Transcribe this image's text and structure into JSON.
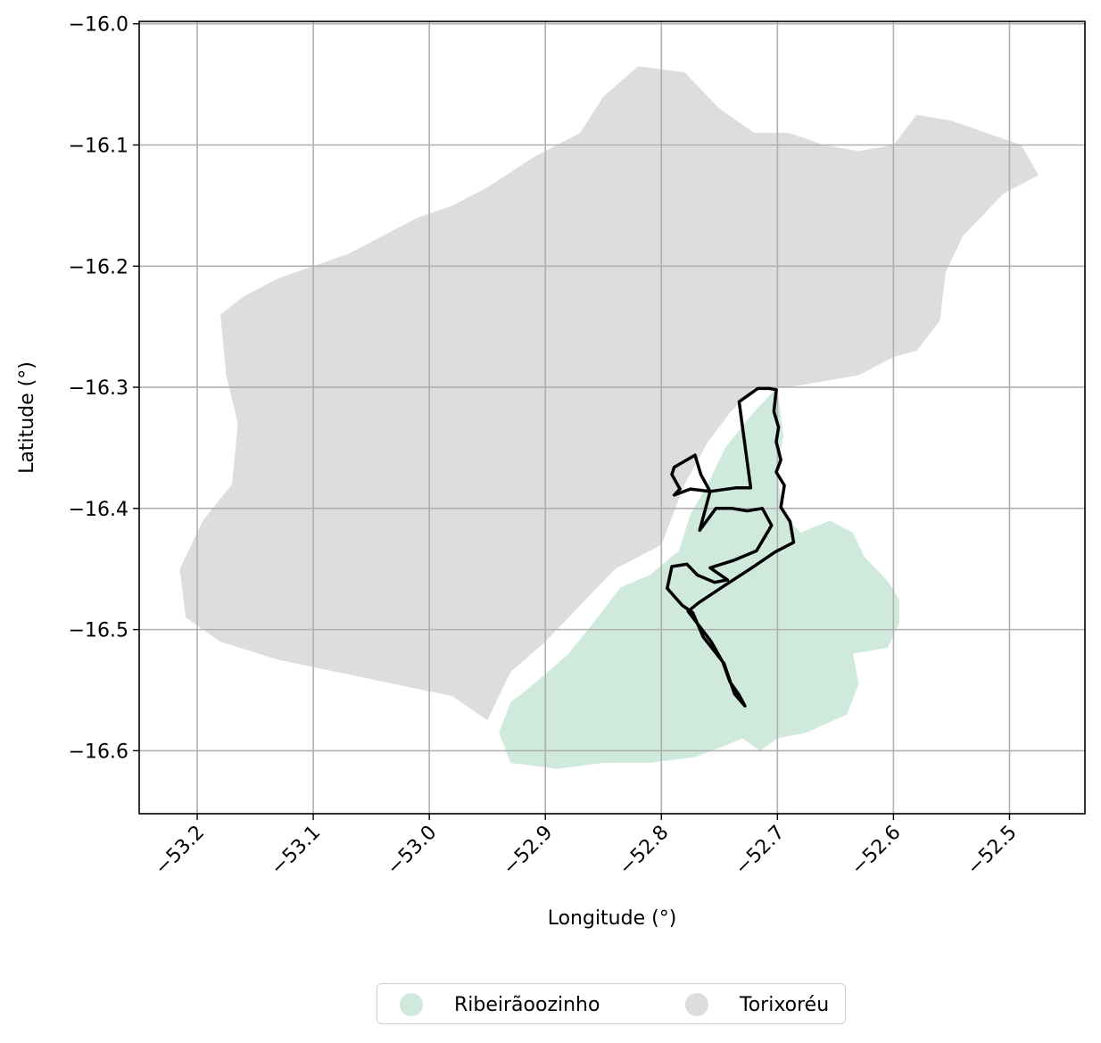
{
  "chart_data": {
    "type": "map",
    "xlabel": "Longitude (°)",
    "ylabel": "Latitude (°)",
    "xlim": [
      -53.25,
      -52.435
    ],
    "ylim": [
      -16.652,
      -15.998
    ],
    "xticks": [
      -53.2,
      -53.1,
      -53.0,
      -52.9,
      -52.8,
      -52.7,
      -52.6,
      -52.5
    ],
    "xtick_labels": [
      "−53.2",
      "−53.1",
      "−53.0",
      "−52.9",
      "−52.8",
      "−52.7",
      "−52.6",
      "−52.5"
    ],
    "yticks": [
      -16.0,
      -16.1,
      -16.2,
      -16.3,
      -16.4,
      -16.5,
      -16.6
    ],
    "ytick_labels": [
      "−16.0",
      "−16.1",
      "−16.2",
      "−16.3",
      "−16.4",
      "−16.5",
      "−16.6"
    ],
    "grid": true,
    "legend_position": "bottom-center",
    "regions": [
      {
        "name": "Torixoréu",
        "color": "#dddddd",
        "polygon": [
          [
            -52.91,
            -16.11
          ],
          [
            -52.87,
            -16.09
          ],
          [
            -52.85,
            -16.06
          ],
          [
            -52.82,
            -16.035
          ],
          [
            -52.78,
            -16.04
          ],
          [
            -52.75,
            -16.07
          ],
          [
            -52.72,
            -16.09
          ],
          [
            -52.69,
            -16.09
          ],
          [
            -52.66,
            -16.1
          ],
          [
            -52.63,
            -16.105
          ],
          [
            -52.6,
            -16.1
          ],
          [
            -52.58,
            -16.075
          ],
          [
            -52.55,
            -16.08
          ],
          [
            -52.52,
            -16.09
          ],
          [
            -52.49,
            -16.1
          ],
          [
            -52.475,
            -16.125
          ],
          [
            -52.505,
            -16.14
          ],
          [
            -52.54,
            -16.175
          ],
          [
            -52.555,
            -16.205
          ],
          [
            -52.56,
            -16.245
          ],
          [
            -52.58,
            -16.27
          ],
          [
            -52.6,
            -16.275
          ],
          [
            -52.63,
            -16.29
          ],
          [
            -52.66,
            -16.295
          ],
          [
            -52.69,
            -16.3
          ],
          [
            -52.72,
            -16.3
          ],
          [
            -52.74,
            -16.32
          ],
          [
            -52.76,
            -16.345
          ],
          [
            -52.78,
            -16.38
          ],
          [
            -52.8,
            -16.43
          ],
          [
            -52.84,
            -16.45
          ],
          [
            -52.87,
            -16.48
          ],
          [
            -52.9,
            -16.51
          ],
          [
            -52.93,
            -16.535
          ],
          [
            -52.95,
            -16.575
          ],
          [
            -52.98,
            -16.555
          ],
          [
            -53.03,
            -16.545
          ],
          [
            -53.08,
            -16.535
          ],
          [
            -53.13,
            -16.525
          ],
          [
            -53.18,
            -16.51
          ],
          [
            -53.21,
            -16.49
          ],
          [
            -53.215,
            -16.45
          ],
          [
            -53.195,
            -16.41
          ],
          [
            -53.17,
            -16.38
          ],
          [
            -53.165,
            -16.33
          ],
          [
            -53.175,
            -16.29
          ],
          [
            -53.18,
            -16.24
          ],
          [
            -53.16,
            -16.225
          ],
          [
            -53.13,
            -16.21
          ],
          [
            -53.1,
            -16.2
          ],
          [
            -53.07,
            -16.19
          ],
          [
            -53.04,
            -16.175
          ],
          [
            -53.01,
            -16.16
          ],
          [
            -52.98,
            -16.15
          ],
          [
            -52.95,
            -16.135
          ]
        ]
      },
      {
        "name": "Ribeirãoozinho",
        "color": "#cfeadd",
        "polygon": [
          [
            -52.72,
            -16.32
          ],
          [
            -52.7,
            -16.3
          ],
          [
            -52.695,
            -16.34
          ],
          [
            -52.7,
            -16.37
          ],
          [
            -52.695,
            -16.405
          ],
          [
            -52.68,
            -16.42
          ],
          [
            -52.655,
            -16.41
          ],
          [
            -52.635,
            -16.42
          ],
          [
            -52.625,
            -16.44
          ],
          [
            -52.605,
            -16.46
          ],
          [
            -52.595,
            -16.475
          ],
          [
            -52.595,
            -16.495
          ],
          [
            -52.605,
            -16.515
          ],
          [
            -52.635,
            -16.52
          ],
          [
            -52.63,
            -16.545
          ],
          [
            -52.64,
            -16.57
          ],
          [
            -52.675,
            -16.585
          ],
          [
            -52.7,
            -16.59
          ],
          [
            -52.715,
            -16.6
          ],
          [
            -52.73,
            -16.59
          ],
          [
            -52.77,
            -16.605
          ],
          [
            -52.81,
            -16.61
          ],
          [
            -52.85,
            -16.61
          ],
          [
            -52.89,
            -16.615
          ],
          [
            -52.93,
            -16.61
          ],
          [
            -52.94,
            -16.585
          ],
          [
            -52.93,
            -16.56
          ],
          [
            -52.91,
            -16.545
          ],
          [
            -52.88,
            -16.52
          ],
          [
            -52.855,
            -16.49
          ],
          [
            -52.835,
            -16.465
          ],
          [
            -52.81,
            -16.455
          ],
          [
            -52.785,
            -16.435
          ],
          [
            -52.775,
            -16.405
          ],
          [
            -52.76,
            -16.38
          ],
          [
            -52.745,
            -16.35
          ]
        ]
      }
    ],
    "outline": {
      "color": "#000000",
      "path": [
        [
          -52.733,
          -16.312
        ],
        [
          -52.717,
          -16.301
        ],
        [
          -52.707,
          -16.301
        ],
        [
          -52.701,
          -16.302
        ],
        [
          -52.703,
          -16.32
        ],
        [
          -52.699,
          -16.333
        ],
        [
          -52.701,
          -16.345
        ],
        [
          -52.697,
          -16.36
        ],
        [
          -52.701,
          -16.37
        ],
        [
          -52.694,
          -16.381
        ],
        [
          -52.697,
          -16.399
        ],
        [
          -52.689,
          -16.411
        ],
        [
          -52.686,
          -16.428
        ],
        [
          -52.702,
          -16.436
        ],
        [
          -52.722,
          -16.449
        ],
        [
          -52.746,
          -16.464
        ],
        [
          -52.768,
          -16.478
        ],
        [
          -52.777,
          -16.485
        ],
        [
          -52.757,
          -16.51
        ],
        [
          -52.747,
          -16.527
        ],
        [
          -52.741,
          -16.543
        ],
        [
          -52.733,
          -16.554
        ],
        [
          -52.728,
          -16.563
        ],
        [
          -52.737,
          -16.553
        ],
        [
          -52.746,
          -16.528
        ],
        [
          -52.764,
          -16.506
        ],
        [
          -52.773,
          -16.486
        ],
        [
          -52.782,
          -16.48
        ],
        [
          -52.795,
          -16.466
        ],
        [
          -52.791,
          -16.448
        ],
        [
          -52.778,
          -16.446
        ],
        [
          -52.769,
          -16.455
        ],
        [
          -52.754,
          -16.461
        ],
        [
          -52.743,
          -16.459
        ],
        [
          -52.758,
          -16.449
        ],
        [
          -52.738,
          -16.443
        ],
        [
          -52.718,
          -16.435
        ],
        [
          -52.705,
          -16.414
        ],
        [
          -52.713,
          -16.4
        ],
        [
          -52.726,
          -16.402
        ],
        [
          -52.739,
          -16.4
        ],
        [
          -52.753,
          -16.4
        ],
        [
          -52.767,
          -16.418
        ],
        [
          -52.758,
          -16.386
        ],
        [
          -52.766,
          -16.372
        ],
        [
          -52.771,
          -16.356
        ],
        [
          -52.789,
          -16.366
        ],
        [
          -52.791,
          -16.372
        ],
        [
          -52.784,
          -16.384
        ],
        [
          -52.789,
          -16.389
        ],
        [
          -52.775,
          -16.384
        ],
        [
          -52.758,
          -16.386
        ],
        [
          -52.736,
          -16.383
        ],
        [
          -52.723,
          -16.383
        ]
      ]
    },
    "legend": [
      "Ribeirãoozinho",
      "Torixoréu"
    ]
  },
  "legend": {
    "item1_label": "Ribeirãoozinho",
    "item1_color": "#cfeadd",
    "item2_label": "Torixoréu",
    "item2_color": "#dddddd"
  }
}
